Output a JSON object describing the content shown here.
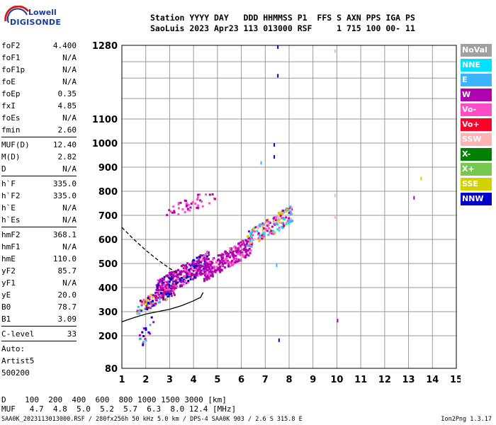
{
  "logo": {
    "line1": "Lowell",
    "line2": "DIGISONDE"
  },
  "header": {
    "line1": "Station YYYY DAY   DDD HHMMSS P1  FFS S AXN PPS IGA PS",
    "line2": "SaoLuis 2023 Apr23 113 013000 RSF     1 715 100 00- 11"
  },
  "params_group1": [
    {
      "key": "foF2",
      "value": "4.400"
    },
    {
      "key": "foF1",
      "value": "N/A"
    },
    {
      "key": "foF1p",
      "value": "N/A"
    },
    {
      "key": "foE",
      "value": "N/A"
    },
    {
      "key": "foEp",
      "value": "0.35"
    },
    {
      "key": "fxI",
      "value": "4.85"
    },
    {
      "key": "foEs",
      "value": "N/A"
    },
    {
      "key": "fmin",
      "value": "2.60"
    }
  ],
  "params_group2": [
    {
      "key": "MUF(D)",
      "value": "12.40"
    },
    {
      "key": "M(D)",
      "value": "2.82"
    },
    {
      "key": "D",
      "value": "N/A"
    }
  ],
  "params_group3": [
    {
      "key": "h`F",
      "value": "335.0"
    },
    {
      "key": "h`F2",
      "value": "335.0"
    },
    {
      "key": "h`E",
      "value": "N/A"
    },
    {
      "key": "h`Es",
      "value": "N/A"
    }
  ],
  "params_group4": [
    {
      "key": "hmF2",
      "value": "368.1"
    },
    {
      "key": "hmF1",
      "value": "N/A"
    },
    {
      "key": "hmE",
      "value": "110.0"
    },
    {
      "key": "yF2",
      "value": "85.7"
    },
    {
      "key": "yF1",
      "value": "N/A"
    },
    {
      "key": "yE",
      "value": "20.0"
    },
    {
      "key": "B0",
      "value": "78.7"
    },
    {
      "key": "B1",
      "value": "3.09"
    }
  ],
  "clevel": {
    "key": "C-level",
    "value": "33"
  },
  "auto_lines": [
    "Auto:",
    "Artist5",
    "500200"
  ],
  "legend": [
    {
      "label": "NoVal",
      "color": "#a0a0a0"
    },
    {
      "label": "NNE",
      "color": "#00e0ff"
    },
    {
      "label": "E",
      "color": "#3cb4ff"
    },
    {
      "label": "W",
      "color": "#b000b0"
    },
    {
      "label": "Vo-",
      "color": "#ff4cc8"
    },
    {
      "label": "Vo+",
      "color": "#ff0028"
    },
    {
      "label": "SSW",
      "color": "#ffb4b4"
    },
    {
      "label": "X-",
      "color": "#008000"
    },
    {
      "label": "X+",
      "color": "#78c850"
    },
    {
      "label": "SSE",
      "color": "#d2d200"
    },
    {
      "label": "NNW",
      "color": "#0000c8"
    }
  ],
  "chart_data": {
    "type": "scatter",
    "x_ticks": [
      "1",
      "2",
      "3",
      "4",
      "5",
      "6",
      "7",
      "8",
      "9",
      "10",
      "11",
      "12",
      "13",
      "14",
      "15"
    ],
    "y_ticks": [
      "80",
      "200",
      "300",
      "400",
      "500",
      "600",
      "700",
      "800",
      "900",
      "1000",
      "1100",
      "1280"
    ],
    "xlim": [
      1,
      15
    ],
    "ylim": [
      80,
      1280
    ],
    "grid": true,
    "traces": [
      {
        "name": "solid",
        "points": [
          [
            1,
            258
          ],
          [
            1.5,
            275
          ],
          [
            2,
            290
          ],
          [
            2.5,
            300
          ],
          [
            3,
            310
          ],
          [
            3.5,
            325
          ],
          [
            4,
            345
          ],
          [
            4.3,
            360
          ],
          [
            4.4,
            380
          ]
        ]
      },
      {
        "name": "dashed",
        "points": [
          [
            1,
            650
          ],
          [
            1.5,
            600
          ],
          [
            2,
            555
          ],
          [
            2.5,
            515
          ],
          [
            3,
            480
          ],
          [
            3.4,
            455
          ]
        ]
      }
    ],
    "clusters": [
      {
        "x": [
          1.6,
          3.2
        ],
        "y": [
          290,
          430
        ],
        "n": 150,
        "colors": [
          "#0000c8",
          "#d2d200",
          "#ff0028",
          "#b000b0",
          "#ff4cc8",
          "#3cb4ff"
        ]
      },
      {
        "x": [
          2.4,
          4.6
        ],
        "y": [
          350,
          560
        ],
        "n": 340,
        "colors": [
          "#b000b0",
          "#b000b0",
          "#ff4cc8",
          "#b000b0",
          "#0000c8"
        ]
      },
      {
        "x": [
          4.4,
          6.4
        ],
        "y": [
          430,
          620
        ],
        "n": 260,
        "colors": [
          "#b000b0",
          "#b000b0",
          "#ff4cc8",
          "#b000b0"
        ]
      },
      {
        "x": [
          6.2,
          8.1
        ],
        "y": [
          560,
          750
        ],
        "n": 170,
        "colors": [
          "#b000b0",
          "#ff4cc8",
          "#00e0ff",
          "#3cb4ff",
          "#ffb4b4",
          "#d2d200"
        ]
      },
      {
        "x": [
          2.8,
          4.9
        ],
        "y": [
          680,
          820
        ],
        "n": 45,
        "colors": [
          "#b000b0",
          "#ff4cc8"
        ]
      },
      {
        "x": [
          1.6,
          2.3
        ],
        "y": [
          130,
          300
        ],
        "n": 18,
        "colors": [
          "#3cb4ff",
          "#0000c8",
          "#b000b0"
        ]
      }
    ],
    "isolated": [
      {
        "x": 7.5,
        "y": 1280,
        "color": "#0000c8"
      },
      {
        "x": 7.5,
        "y": 1210,
        "color": "#0000c8"
      },
      {
        "x": 7.35,
        "y": 1000,
        "color": "#0000c8"
      },
      {
        "x": 7.35,
        "y": 950,
        "color": "#0000c8"
      },
      {
        "x": 7.45,
        "y": 500,
        "color": "#3cb4ff"
      },
      {
        "x": 7.55,
        "y": 190,
        "color": "#0000c8"
      },
      {
        "x": 6.8,
        "y": 925,
        "color": "#3cb4ff"
      },
      {
        "x": 9.9,
        "y": 1270,
        "color": "#ffb4b4"
      },
      {
        "x": 9.9,
        "y": 790,
        "color": "#ffb4b4"
      },
      {
        "x": 9.9,
        "y": 700,
        "color": "#ffb4b4"
      },
      {
        "x": 10.0,
        "y": 270,
        "color": "#b000b0"
      },
      {
        "x": 13.2,
        "y": 780,
        "color": "#b000b0"
      },
      {
        "x": 13.5,
        "y": 860,
        "color": "#d2d200"
      }
    ]
  },
  "table": {
    "line1": "D    100  200  400  600  800 1000 1500 3000 [km]",
    "line2": "MUF   4.7  4.8  5.0  5.2  5.7  6.3  8.0 12.4 [MHz]"
  },
  "footer": "SAA0K_2023113013000.RSF / 280fx256h 50 kHz 5.0 km / DPS-4 SAA0K 903 / 2.6 S 315.8 E",
  "version": "Ion2Png 1.3.17"
}
